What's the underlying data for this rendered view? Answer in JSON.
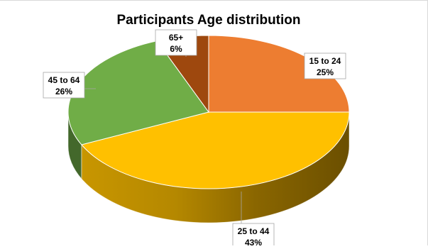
{
  "chart_data": {
    "type": "pie",
    "title": "Participants Age distribution",
    "categories": [
      "15 to 24",
      "25 to 44",
      "45 to 64",
      "65+"
    ],
    "values": [
      25,
      43,
      26,
      6
    ],
    "value_labels": [
      "25%",
      "43%",
      "26%",
      "6%"
    ],
    "colors": [
      "#ED7D31",
      "#FFC000",
      "#70AD47",
      "#9E480E"
    ],
    "style": "3d",
    "data_labels": "callout",
    "legend": "none"
  }
}
